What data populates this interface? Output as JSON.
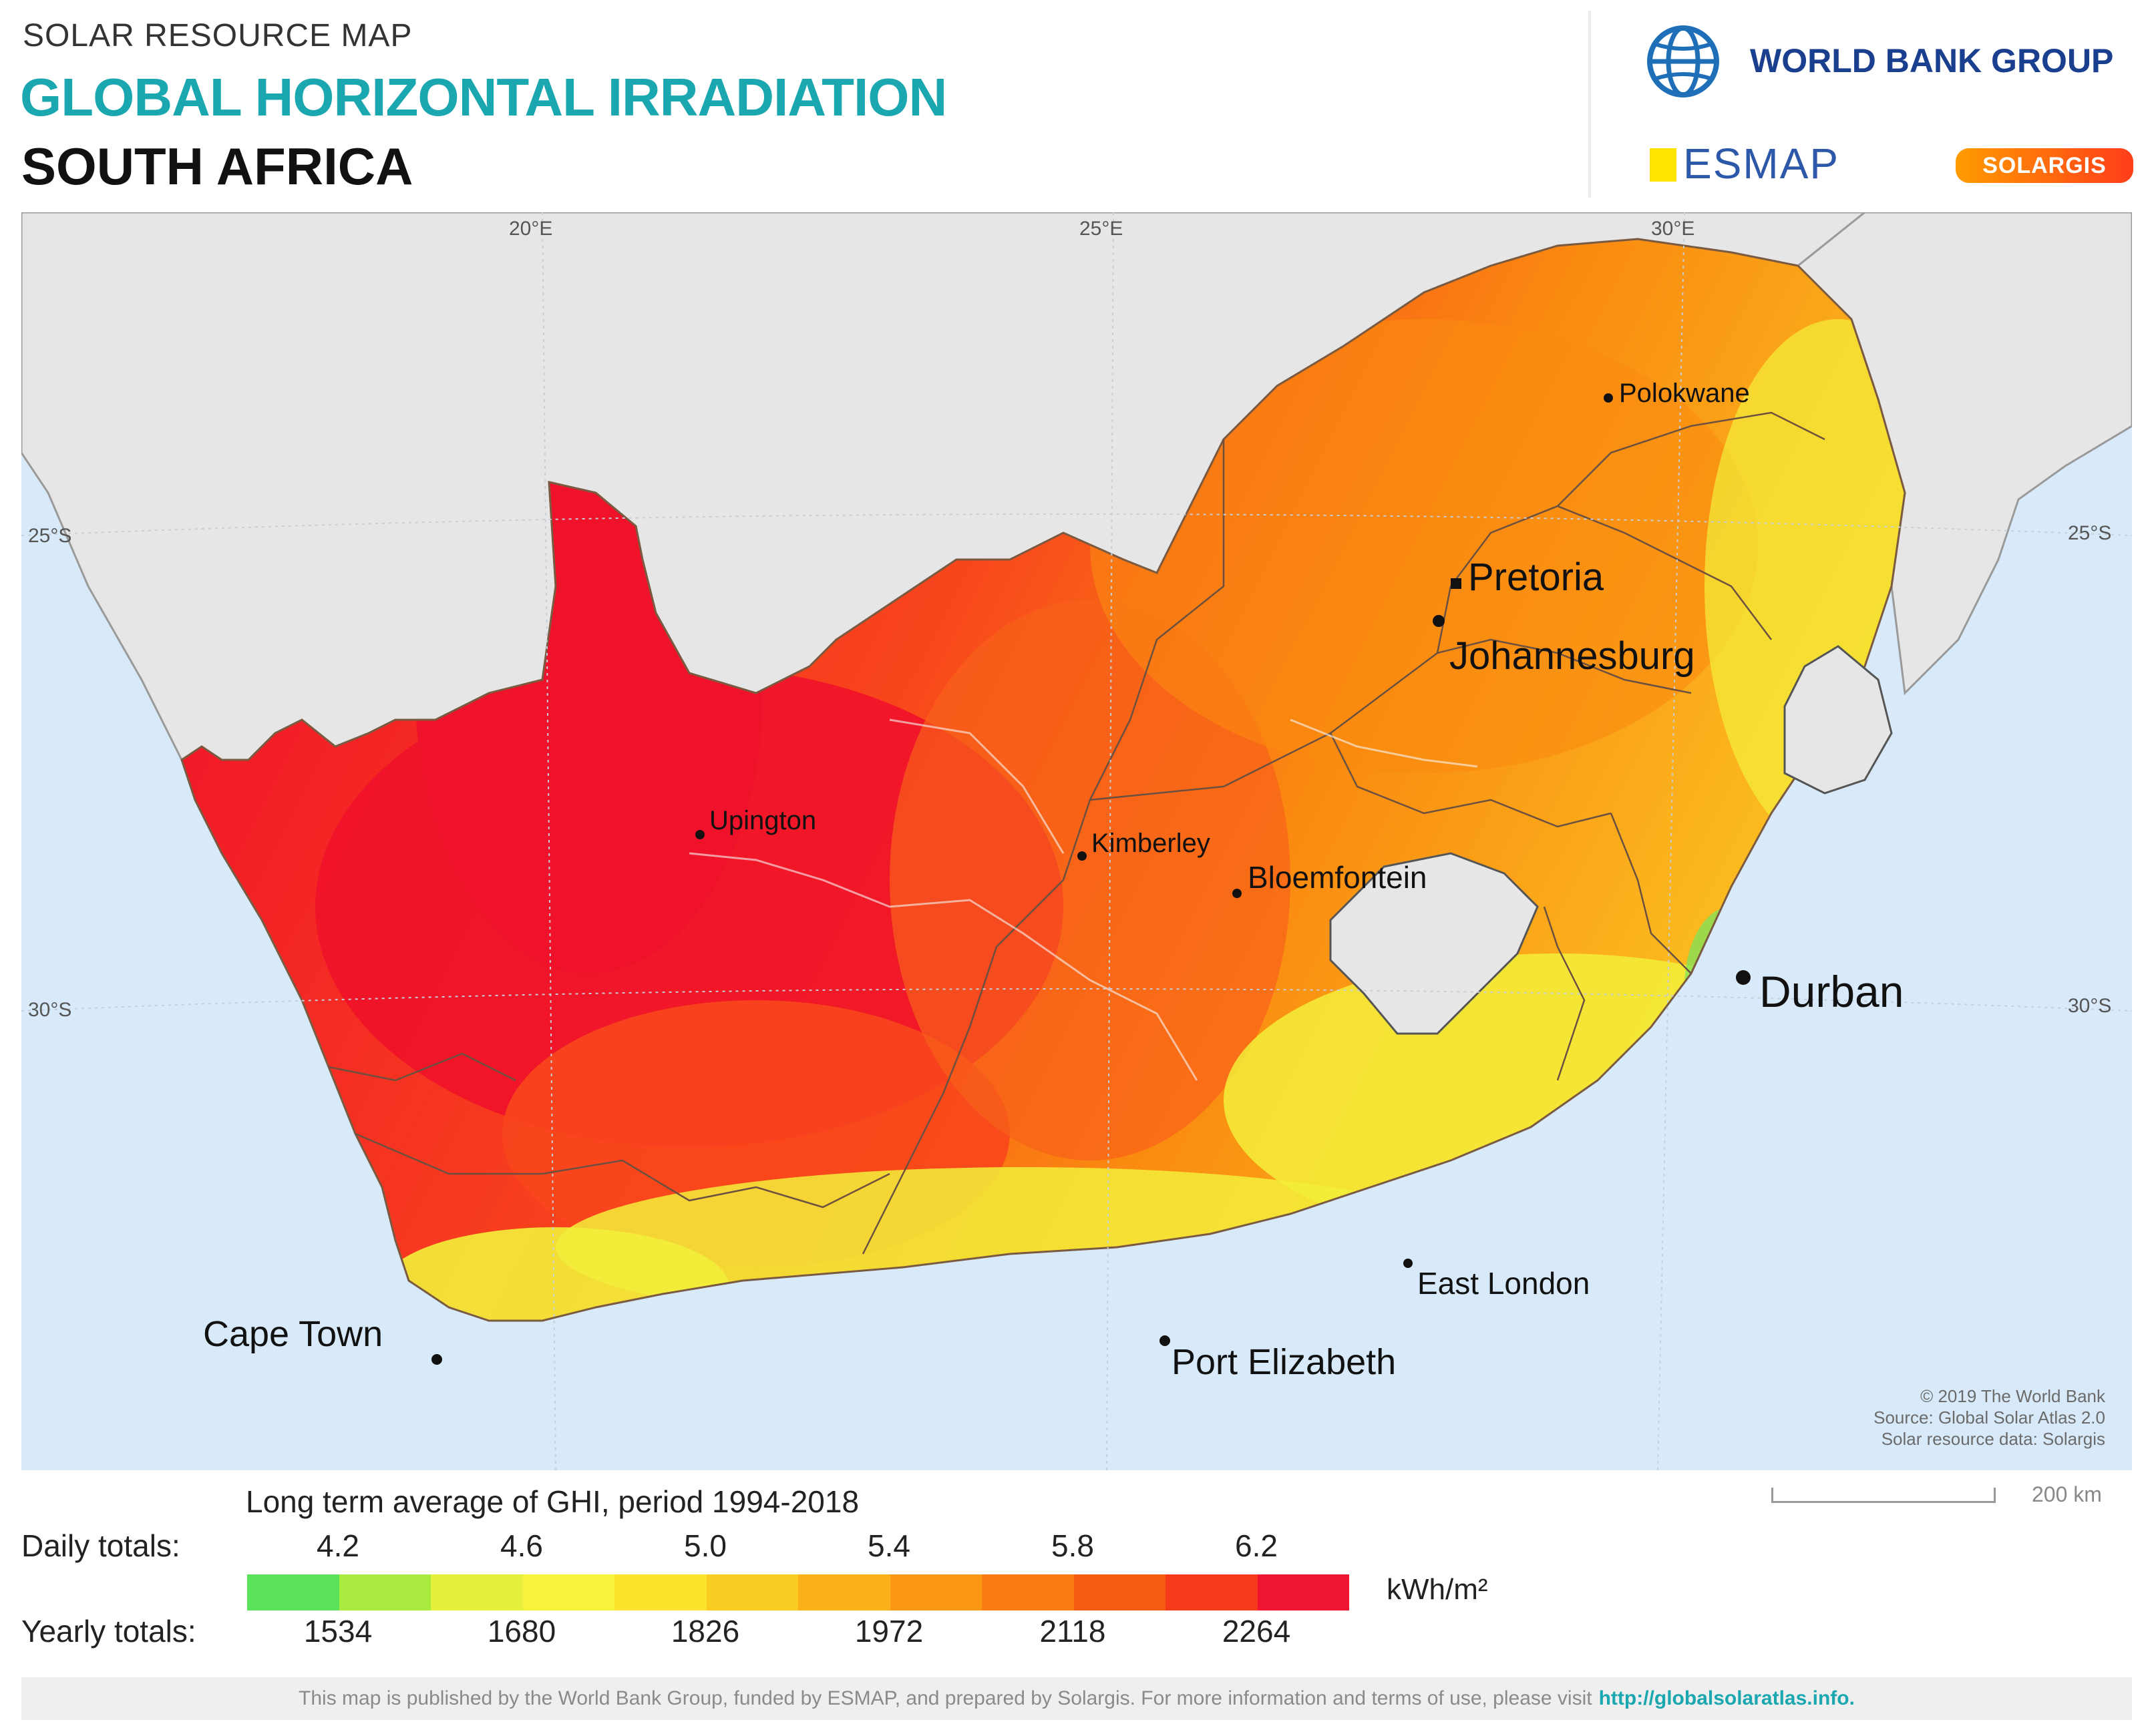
{
  "header": {
    "kicker": "SOLAR RESOURCE MAP",
    "title": "GLOBAL HORIZONTAL IRRADIATION",
    "country": "SOUTH AFRICA"
  },
  "logos": {
    "world_bank": "WORLD BANK GROUP",
    "esmap": "ESMAP",
    "solargis": "SOLARGIS"
  },
  "map": {
    "graticule": {
      "lon_20": "20°E",
      "lon_25": "25°E",
      "lon_30": "30°E",
      "lat_25_left": "25°S",
      "lat_25_right": "25°S",
      "lat_30_left": "30°S",
      "lat_30_right": "30°S"
    },
    "cities": {
      "polokwane": "Polokwane",
      "pretoria": "Pretoria",
      "johannesburg": "Johannesburg",
      "upington": "Upington",
      "kimberley": "Kimberley",
      "bloemfontein": "Bloemfontein",
      "durban": "Durban",
      "east_london": "East London",
      "port_elizabeth": "Port Elizabeth",
      "cape_town": "Cape Town"
    },
    "credits": {
      "line1": "© 2019 The World Bank",
      "line2": "Source: Global Solar Atlas 2.0",
      "line3": "Solar resource data: Solargis"
    },
    "colors": {
      "ocean": "#d8eaf9",
      "land_neighbours": "#e6e6e6",
      "ghi_high": "#f0122a",
      "ghi_mid_high": "#fb4a1c",
      "ghi_mid": "#fa8a10",
      "ghi_low_mid": "#fbc12a",
      "ghi_low": "#f3ef3a",
      "ghi_lowest": "#7de35a"
    }
  },
  "legend": {
    "title": "Long term average of GHI, period 1994-2018",
    "daily_label": "Daily totals:",
    "yearly_label": "Yearly totals:",
    "daily_values": [
      "4.2",
      "4.6",
      "5.0",
      "5.4",
      "5.8",
      "6.2"
    ],
    "yearly_values": [
      "1534",
      "1680",
      "1826",
      "1972",
      "2118",
      "2264"
    ],
    "unit": "kWh/m²",
    "colors": [
      "#5ae35a",
      "#a9ea3e",
      "#e4f03c",
      "#f8f23a",
      "#fbe52c",
      "#fbcd22",
      "#fbb21a",
      "#fa9813",
      "#f97d10",
      "#f75d12",
      "#f43a18",
      "#ee1530"
    ]
  },
  "scale": {
    "label": "200 km"
  },
  "footer": {
    "text": "This map is published by the World Bank Group, funded by ESMAP, and prepared by Solargis. For more information and terms of use, please visit",
    "link": "http://globalsolaratlas.info."
  }
}
